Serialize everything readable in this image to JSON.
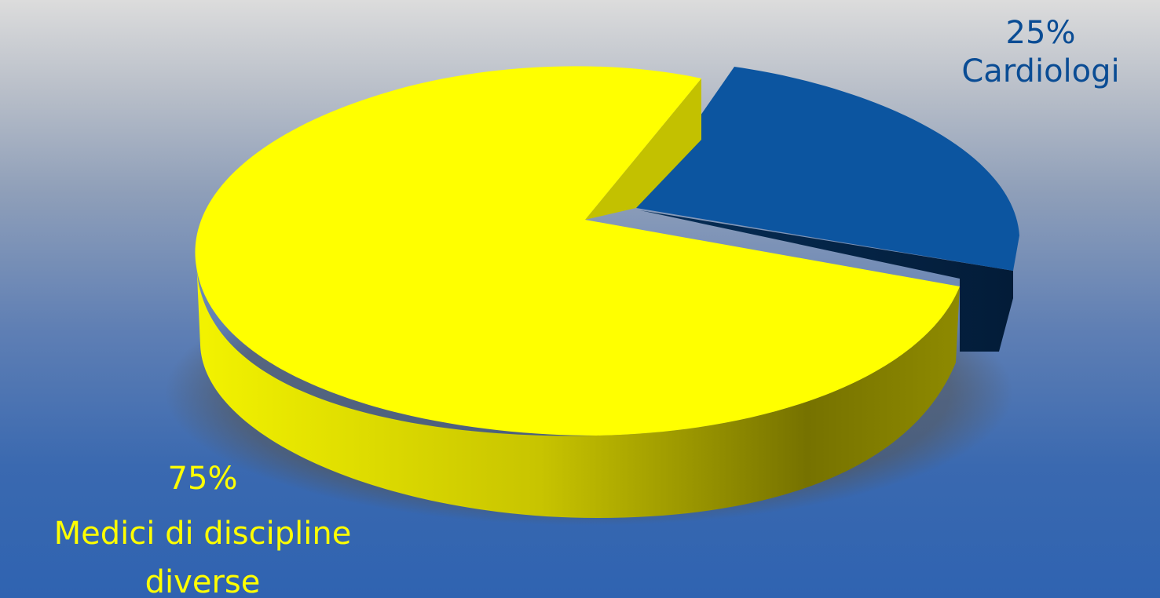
{
  "chart_data": {
    "type": "pie",
    "style": "3d-exploded",
    "slices": [
      {
        "value_label": "25%",
        "category_label": "Cardiologi",
        "value": 25,
        "color": "#0c55a0",
        "label_color": "#0a4c94"
      },
      {
        "value_label": "75%",
        "category_label_lines": [
          "Medici di discipline",
          "diverse"
        ],
        "value": 75,
        "color": "#ffff00",
        "label_color": "#ffff00"
      }
    ]
  }
}
